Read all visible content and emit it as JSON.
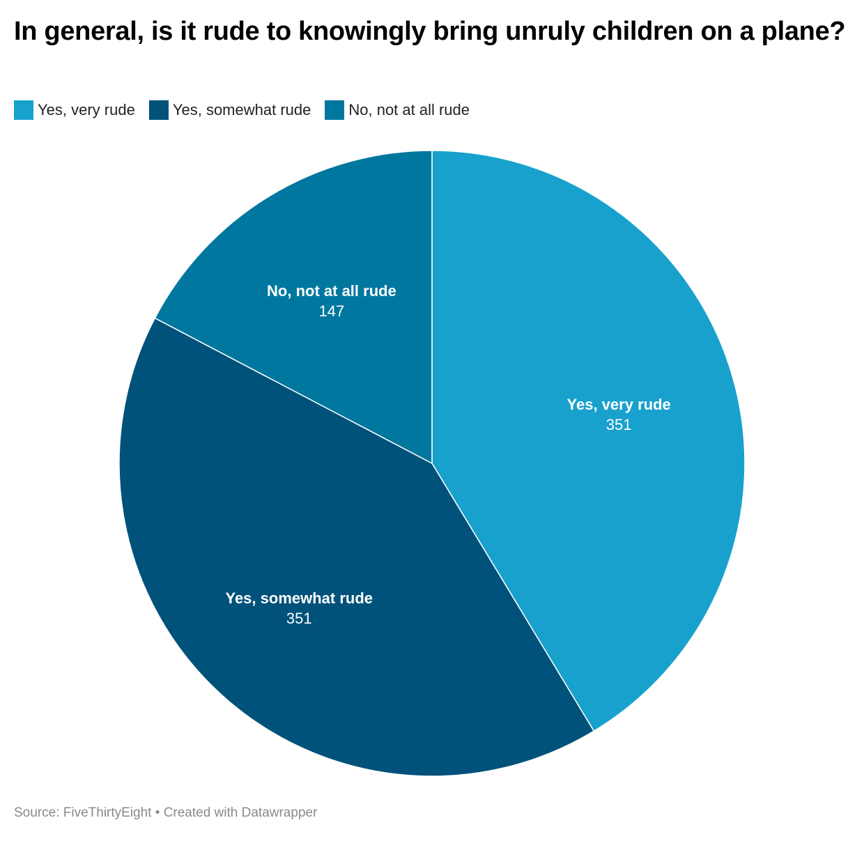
{
  "title": "In general, is it rude to knowingly bring unruly children on a plane?",
  "legend": [
    {
      "label": "Yes, very rude",
      "color": "#18a1cd"
    },
    {
      "label": "Yes, somewhat rude",
      "color": "#00527a"
    },
    {
      "label": "No, not at all rude",
      "color": "#00779f"
    }
  ],
  "chart_data": {
    "type": "pie",
    "title": "In general, is it rude to knowingly bring unruly children on a plane?",
    "categories": [
      "Yes, very rude",
      "Yes, somewhat rude",
      "No, not at all rude"
    ],
    "values": [
      351,
      351,
      147
    ],
    "colors": [
      "#18a1cd",
      "#00527a",
      "#00779f"
    ],
    "legend_position": "top-left",
    "start_angle": "12 o'clock",
    "direction": "clockwise"
  },
  "footer": {
    "source": "Source: FiveThirtyEight",
    "separator": "•",
    "credit": "Created with Datawrapper"
  }
}
